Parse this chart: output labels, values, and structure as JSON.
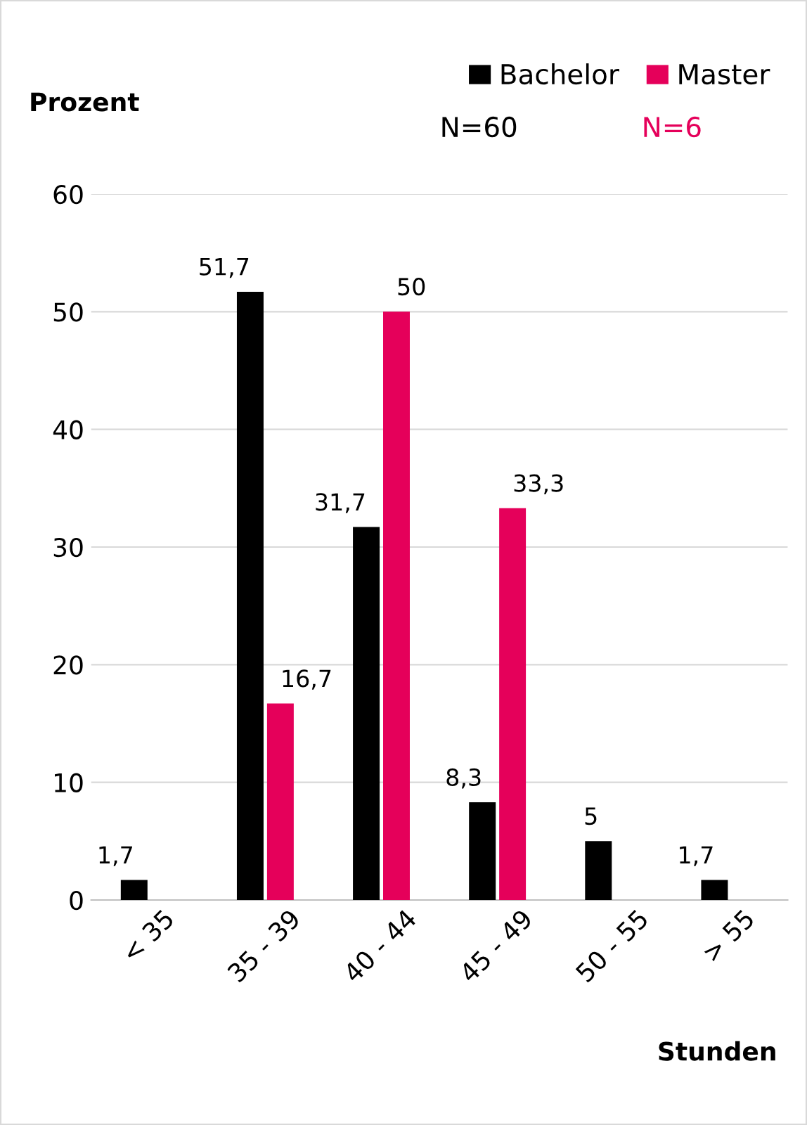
{
  "chart_data": {
    "type": "bar",
    "ylabel": "Prozent",
    "xlabel": "Stunden",
    "categories": [
      "< 35",
      "35 - 39",
      "40 - 44",
      "45 - 49",
      "50 - 55",
      "> 55"
    ],
    "series": [
      {
        "name": "Bachelor",
        "color": "#000000",
        "values": [
          1.7,
          51.7,
          31.7,
          8.3,
          5,
          1.7
        ],
        "value_labels": [
          "1,7",
          "51,7",
          "31,7",
          "8,3",
          "5",
          "1,7"
        ]
      },
      {
        "name": "Master",
        "color": "#e5005a",
        "values": [
          null,
          16.7,
          50,
          33.3,
          null,
          null
        ],
        "value_labels": [
          null,
          "16,7",
          "50",
          "33,3",
          null,
          null
        ]
      }
    ],
    "annotations": [
      "N=60",
      "N=6"
    ],
    "ylim": [
      0,
      60
    ],
    "yticks": [
      0,
      10,
      20,
      30,
      40,
      50,
      60
    ],
    "grid": "y",
    "legend": "top right"
  }
}
